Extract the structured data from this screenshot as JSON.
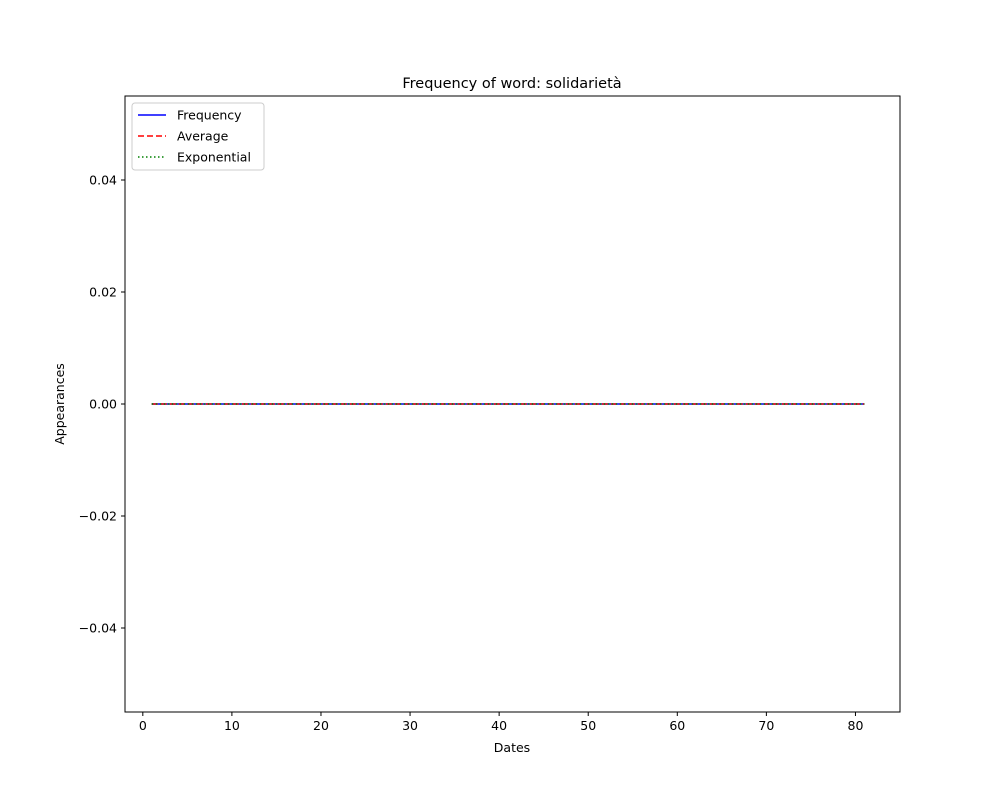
{
  "chart_data": {
    "type": "line",
    "title": "Frequency of word: solidarietà",
    "xlabel": "Dates",
    "ylabel": "Appearances",
    "xlim": [
      -2.0,
      85.0
    ],
    "ylim": [
      -0.055,
      0.055
    ],
    "xticks": [
      0,
      10,
      20,
      30,
      40,
      50,
      60,
      70,
      80
    ],
    "xtick_labels": [
      "0",
      "10",
      "20",
      "30",
      "40",
      "50",
      "60",
      "70",
      "80"
    ],
    "yticks": [
      -0.04,
      -0.02,
      0.0,
      0.02,
      0.04
    ],
    "ytick_labels": [
      "−0.04",
      "−0.02",
      "0.00",
      "0.02",
      "0.04"
    ],
    "grid": false,
    "legend_position": "upper-left",
    "x_range": [
      1,
      81
    ],
    "series": [
      {
        "name": "Frequency",
        "color": "#0000ff",
        "style": "solid",
        "constant_value": 0.0
      },
      {
        "name": "Average",
        "color": "#ff0000",
        "style": "dashed",
        "constant_value": 0.0
      },
      {
        "name": "Exponential",
        "color": "#008000",
        "style": "dotted",
        "constant_value": 0.0
      }
    ]
  }
}
